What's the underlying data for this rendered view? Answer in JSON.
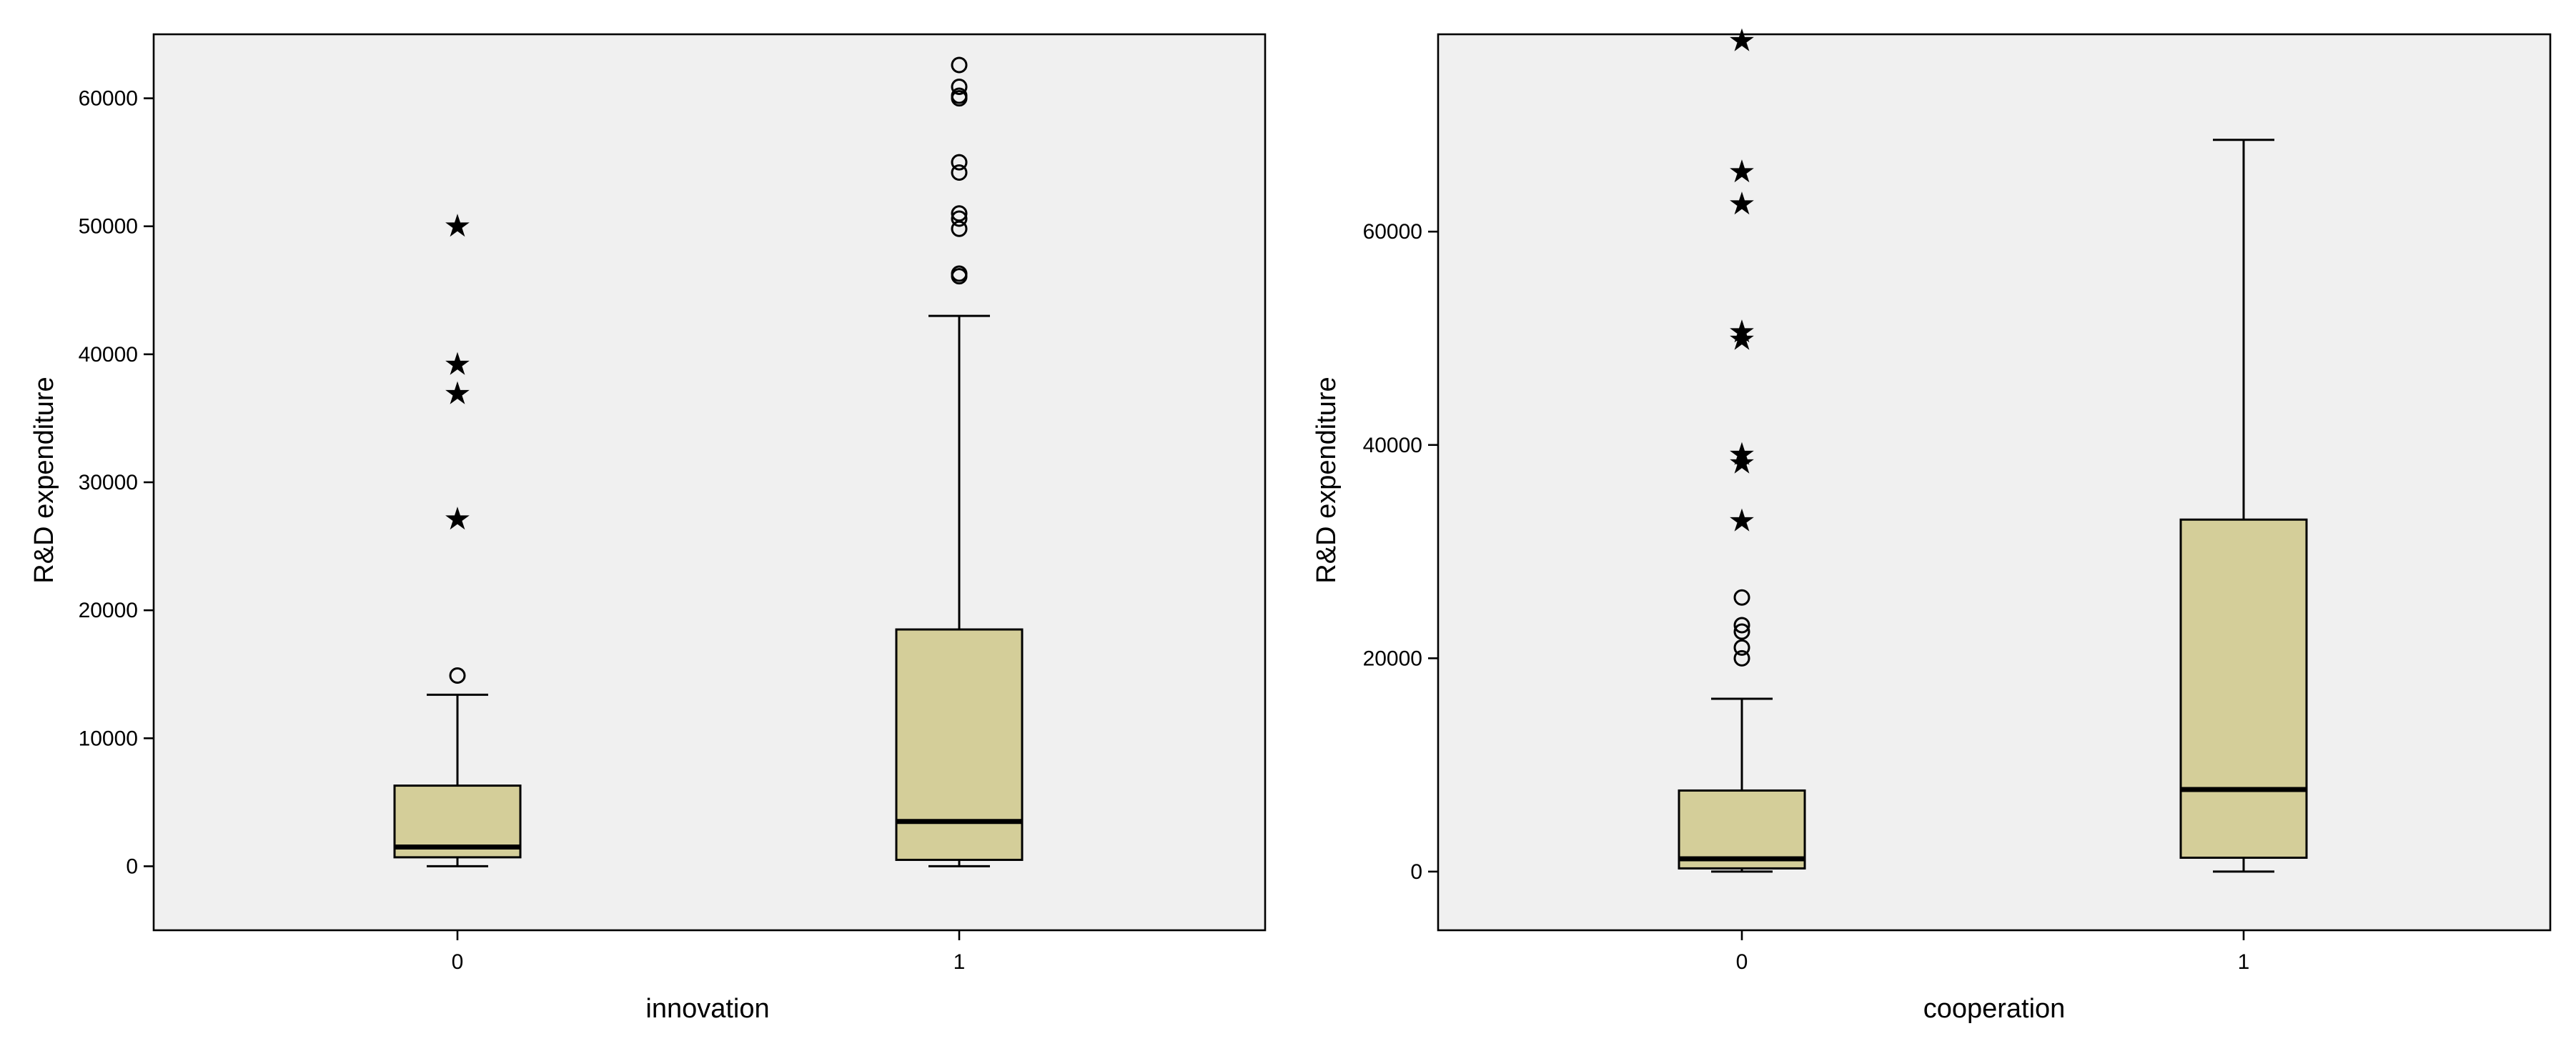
{
  "colors": {
    "plot_background": "#f0f0f0",
    "box_fill": "#d4ce99",
    "stroke": "#000000"
  },
  "chart_data": [
    {
      "type": "boxplot",
      "xlabel": "innovation",
      "ylabel": "R&D expenditure",
      "ylim": [
        -5000,
        65000
      ],
      "yticks": [
        0,
        10000,
        20000,
        30000,
        40000,
        50000,
        60000
      ],
      "grid": false,
      "categories": [
        "0",
        "1"
      ],
      "boxes": [
        {
          "category": "0",
          "min": 0,
          "q1": 700,
          "median": 1500,
          "q3": 6300,
          "max": 13400,
          "outliers_circle": [
            14900
          ],
          "outliers_star": [
            27200,
            37000,
            39300,
            50100
          ]
        },
        {
          "category": "1",
          "min": 0,
          "q1": 500,
          "median": 3500,
          "q3": 18500,
          "max": 43000,
          "outliers_circle": [
            46100,
            46300,
            49800,
            50600,
            51000,
            54200,
            55000,
            60000,
            60200,
            60900,
            62600
          ],
          "outliers_star": []
        }
      ]
    },
    {
      "type": "boxplot",
      "xlabel": "cooperation",
      "ylabel": "R&D expenditure",
      "ylim": [
        -5500,
        78500
      ],
      "yticks": [
        0,
        20000,
        40000,
        60000
      ],
      "grid": false,
      "categories": [
        "0",
        "1"
      ],
      "boxes": [
        {
          "category": "0",
          "min": 0,
          "q1": 300,
          "median": 1200,
          "q3": 7600,
          "max": 16200,
          "outliers_circle": [
            20000,
            21000,
            22500,
            23100,
            25700
          ],
          "outliers_star": [
            33000,
            38400,
            39200,
            50000,
            50700,
            62700,
            65700,
            78000
          ]
        },
        {
          "category": "1",
          "min": 0,
          "q1": 1300,
          "median": 7700,
          "q3": 33000,
          "max": 68600,
          "outliers_circle": [],
          "outliers_star": []
        }
      ]
    }
  ]
}
